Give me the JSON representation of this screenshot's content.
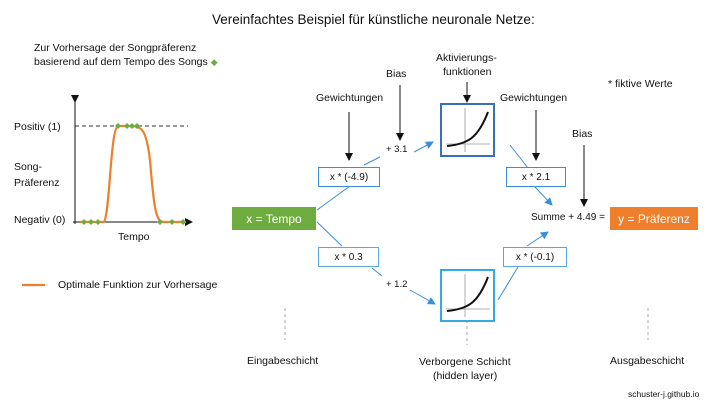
{
  "title": "Vereinfachtes Beispiel für künstliche neuronale Netze:",
  "intro": {
    "line1": "Zur Vorhersage der Songpräferenz",
    "line2": "basierend auf dem Tempo des Songs"
  },
  "chart": {
    "positive_label": "Positiv (1)",
    "negative_label": "Negativ (0)",
    "ylabel_line1": "Song-",
    "ylabel_line2": "Präferenz",
    "xlabel": "Tempo",
    "legend_label": "Optimale Funktion zur Vorhersage",
    "colors": {
      "curve": "#ef7f2c",
      "points": "#6fac3f"
    }
  },
  "labels": {
    "bias_top": "Bias",
    "bias_right": "Bias",
    "weights_left": "Gewichtungen",
    "weights_right": "Gewichtungen",
    "activation_line1": "Aktivierungs-",
    "activation_line2": "funktionen",
    "fiktive": "* fiktive Werte",
    "input_layer": "Eingabeschicht",
    "hidden_line1": "Verborgene Schicht",
    "hidden_line2": "(hidden layer)",
    "output_layer": "Ausgabeschicht",
    "source": "schuster-j.github.io"
  },
  "nodes": {
    "input": "x = Tempo",
    "output": "y = Präferenz",
    "sum": "Summe + 4.49 ="
  },
  "ops": {
    "w1": "x * (-4.9)",
    "w2": "x * 0.3",
    "w3": "x * 2.1",
    "w4": "x * (-0.1)",
    "b1": "+ 3.1",
    "b2": "+ 1.2"
  },
  "colors": {
    "input": "#6fac3f",
    "output": "#ef7f2c",
    "arrow": "#3a8fd8",
    "act_top_border": "#3670b8",
    "act_bottom_border": "#35a9e0"
  }
}
